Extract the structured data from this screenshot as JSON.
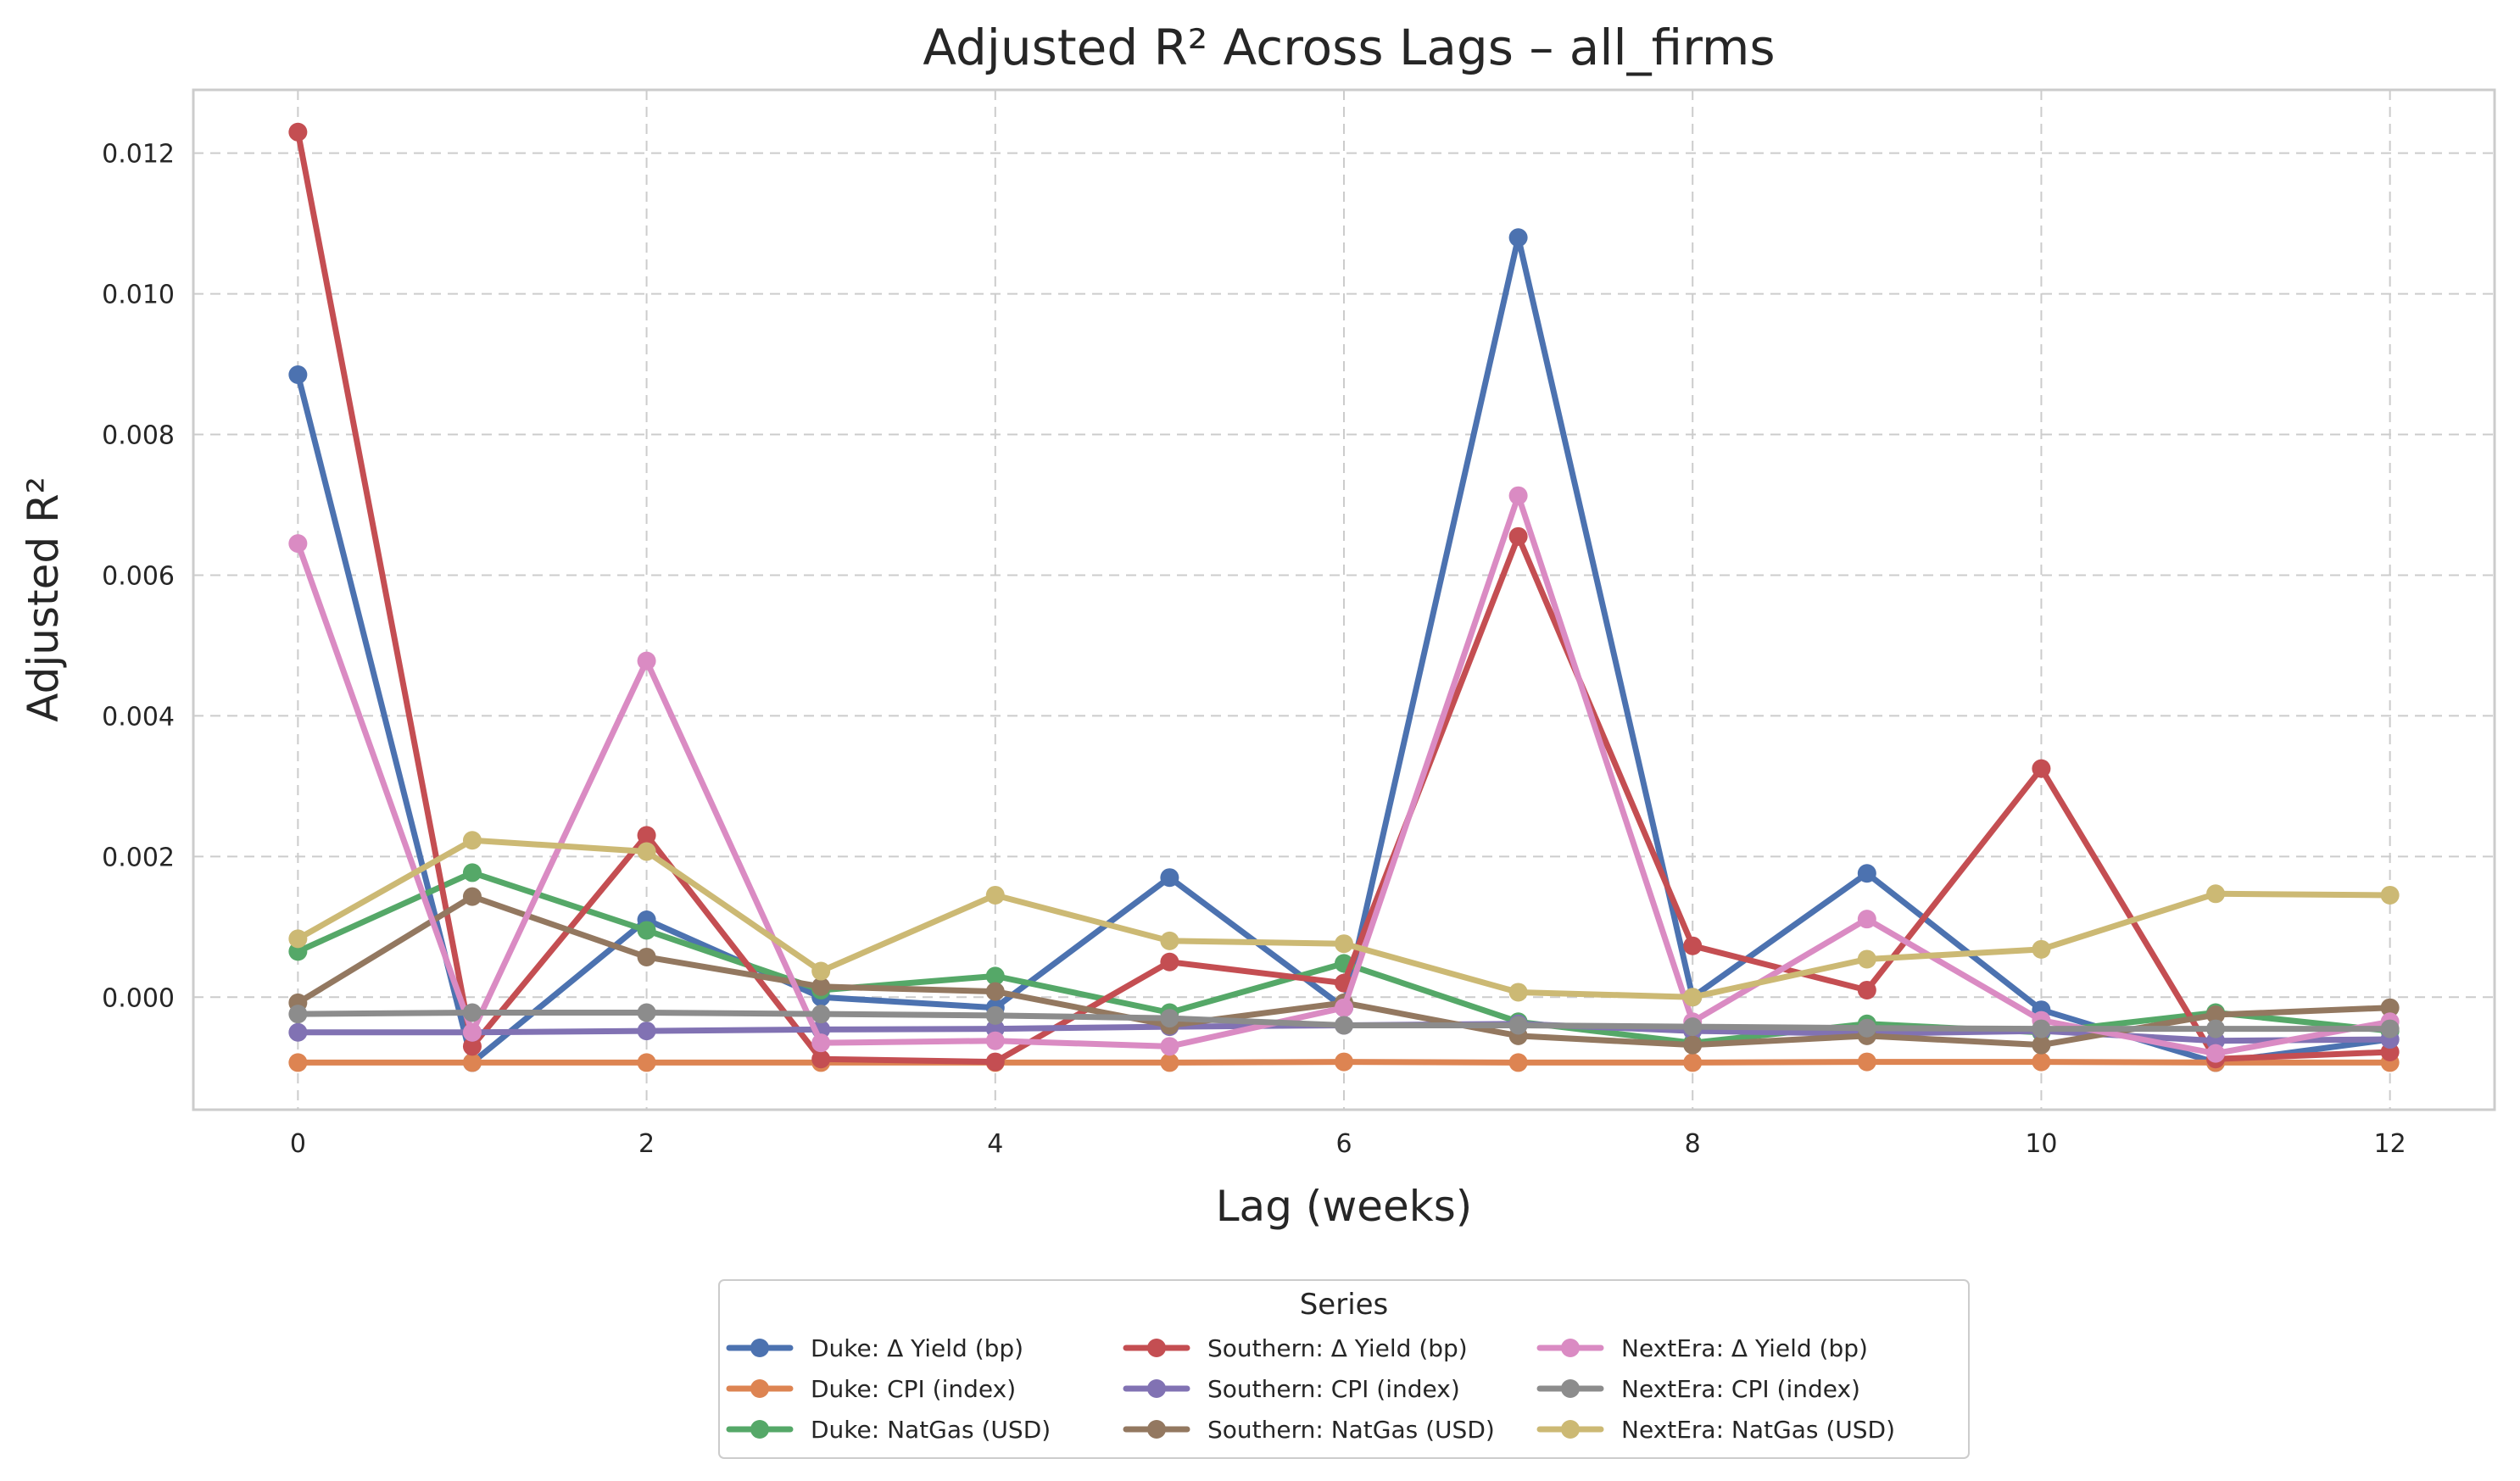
{
  "chart_data": {
    "type": "line",
    "title": "Adjusted R² Across Lags – all_firms",
    "xlabel": "Lag (weeks)",
    "ylabel": "Adjusted R²",
    "x": [
      0,
      1,
      2,
      3,
      4,
      5,
      6,
      7,
      8,
      9,
      10,
      11,
      12
    ],
    "xticks": [
      0,
      2,
      4,
      6,
      8,
      10,
      12
    ],
    "xtick_labels": [
      "0",
      "2",
      "4",
      "6",
      "8",
      "10",
      "12"
    ],
    "yticks": [
      0.0,
      0.002,
      0.004,
      0.006,
      0.008,
      0.01,
      0.012
    ],
    "ytick_labels": [
      "0.000",
      "0.002",
      "0.004",
      "0.006",
      "0.008",
      "0.010",
      "0.012"
    ],
    "xlim": [
      -0.6,
      12.6
    ],
    "ylim": [
      -0.0016,
      0.0129
    ],
    "grid": true,
    "legend_title": "Series",
    "legend_position": "bottom-center",
    "series": [
      {
        "name": "Duke: Δ Yield (bp)",
        "color": "#4c72b0",
        "values": [
          0.00885,
          -0.00093,
          0.0011,
          0.0,
          -0.00015,
          0.0017,
          -0.00015,
          0.0108,
          0.0,
          0.00176,
          -0.00018,
          -0.00093,
          -0.0006
        ]
      },
      {
        "name": "Duke: CPI (index)",
        "color": "#dd8452",
        "values": [
          -0.00093,
          -0.00093,
          -0.00093,
          -0.00093,
          -0.00093,
          -0.00093,
          -0.00092,
          -0.00093,
          -0.00093,
          -0.00092,
          -0.00092,
          -0.00093,
          -0.00093
        ]
      },
      {
        "name": "Duke: NatGas (USD)",
        "color": "#55a868",
        "values": [
          0.00065,
          0.00177,
          0.00095,
          0.0001,
          0.0003,
          -0.00022,
          0.00048,
          -0.00035,
          -0.00065,
          -0.00038,
          -0.0005,
          -0.00022,
          -0.00048
        ]
      },
      {
        "name": "Southern: Δ Yield (bp)",
        "color": "#c44e52",
        "values": [
          0.0123,
          -0.0007,
          0.0023,
          -0.00088,
          -0.00092,
          0.0005,
          0.0002,
          0.00655,
          0.00073,
          0.0001,
          0.00325,
          -0.00088,
          -0.00078
        ]
      },
      {
        "name": "Southern: CPI (index)",
        "color": "#8172b3",
        "values": [
          -0.0005,
          -0.0005,
          -0.00048,
          -0.00046,
          -0.00045,
          -0.00042,
          -0.0004,
          -0.00038,
          -0.00048,
          -0.00052,
          -0.00048,
          -0.00062,
          -0.0006
        ]
      },
      {
        "name": "Southern: NatGas (USD)",
        "color": "#937860",
        "values": [
          -8e-05,
          0.00143,
          0.00057,
          0.00015,
          8e-05,
          -0.0004,
          -8e-05,
          -0.00055,
          -0.00068,
          -0.00055,
          -0.00068,
          -0.00025,
          -0.00015
        ]
      },
      {
        "name": "NextEra: Δ Yield (bp)",
        "color": "#da8bc3",
        "values": [
          0.00645,
          -0.0005,
          0.00478,
          -0.00065,
          -0.00062,
          -0.0007,
          -0.00015,
          0.00713,
          -0.00035,
          0.00111,
          -0.00033,
          -0.0008,
          -0.00035
        ]
      },
      {
        "name": "NextEra: CPI (index)",
        "color": "#8c8c8c",
        "values": [
          -0.00024,
          -0.00022,
          -0.00022,
          -0.00024,
          -0.00026,
          -0.0003,
          -0.0004,
          -0.0004,
          -0.00042,
          -0.00044,
          -0.00045,
          -0.00045,
          -0.00045
        ]
      },
      {
        "name": "NextEra: NatGas (USD)",
        "color": "#ccb974",
        "values": [
          0.00083,
          0.00223,
          0.00207,
          0.00037,
          0.00145,
          0.0008,
          0.00076,
          7e-05,
          0.0,
          0.00054,
          0.00068,
          0.00147,
          0.00145
        ]
      }
    ]
  }
}
